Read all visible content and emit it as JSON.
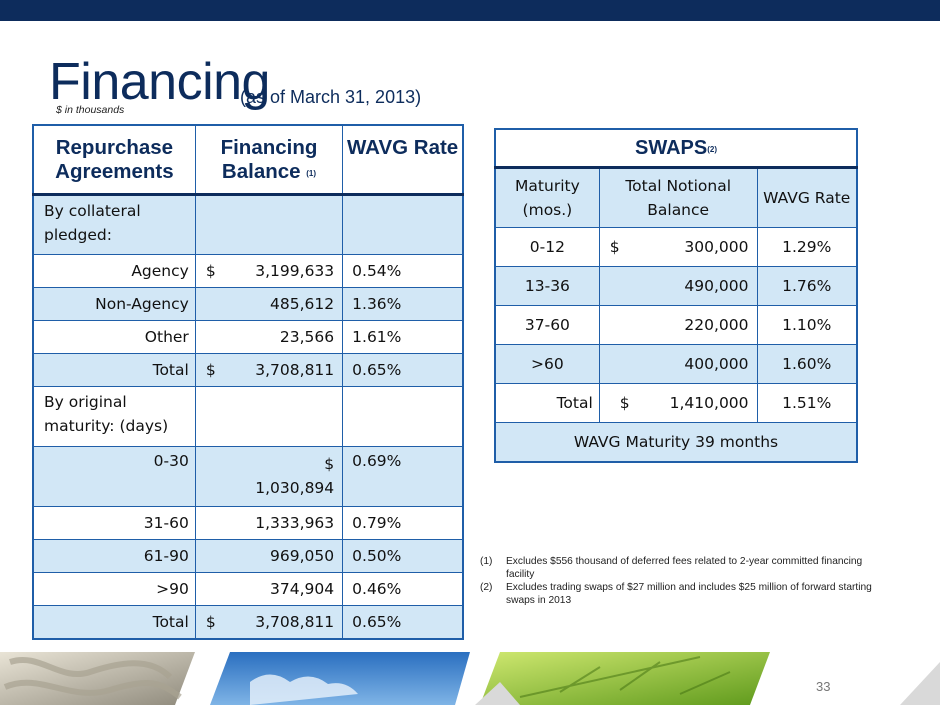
{
  "title": "Financing",
  "subtitle": "(as of March 31, 2013)",
  "units_note": "$ in thousands",
  "repo": {
    "headers": [
      "Repurchase Agreements",
      "Financing Balance",
      "WAVG Rate"
    ],
    "header_footnote": "(1)",
    "section1_label": "By collateral pledged:",
    "rows1": [
      {
        "label": "Agency",
        "cur": "$",
        "amount": "3,199,633",
        "rate": "0.54%"
      },
      {
        "label": "Non-Agency",
        "cur": "",
        "amount": "485,612",
        "rate": "1.36%"
      },
      {
        "label": "Other",
        "cur": "",
        "amount": "23,566",
        "rate": "1.61%"
      },
      {
        "label": "Total",
        "cur": "$",
        "amount": "3,708,811",
        "rate": "0.65%"
      }
    ],
    "section2_label": "By original maturity: (days)",
    "row_030": {
      "label": "0-30",
      "cur": "$",
      "amount": "1,030,894",
      "rate": "0.69%"
    },
    "rows2": [
      {
        "label": "31-60",
        "cur": "",
        "amount": "1,333,963",
        "rate": "0.79%"
      },
      {
        "label": "61-90",
        "cur": "",
        "amount": "969,050",
        "rate": "0.50%"
      },
      {
        "label": ">90",
        "cur": "",
        "amount": "374,904",
        "rate": "0.46%"
      },
      {
        "label": "Total",
        "cur": "$",
        "amount": "3,708,811",
        "rate": "0.65%"
      }
    ]
  },
  "swaps": {
    "title": "SWAPS",
    "title_footnote": "(2)",
    "headers": [
      "Maturity (mos.)",
      "Total Notional Balance",
      "WAVG Rate"
    ],
    "rows": [
      {
        "maturity": "0-12",
        "cur": "$",
        "amount": "300,000",
        "rate": "1.29%"
      },
      {
        "maturity": "13-36",
        "cur": "",
        "amount": "490,000",
        "rate": "1.76%"
      },
      {
        "maturity": "37-60",
        "cur": "",
        "amount": "220,000",
        "rate": "1.10%"
      },
      {
        "maturity": ">60",
        "cur": "",
        "amount": "400,000",
        "rate": "1.60%"
      },
      {
        "maturity": "Total",
        "cur": "$",
        "amount": "1,410,000",
        "rate": "1.51%"
      }
    ],
    "footer": "WAVG Maturity 39 months"
  },
  "footnotes": [
    {
      "num": "(1)",
      "text": "Excludes $556 thousand of deferred fees related to 2-year committed financing facility"
    },
    {
      "num": "(2)",
      "text": "Excludes trading swaps of $27 million and includes $25 million of forward starting swaps in 2013"
    }
  ],
  "page_number": "33",
  "colors": {
    "navy": "#0d2c5c",
    "table_border": "#1f5ea8",
    "row_fill": "#d2e7f6"
  }
}
